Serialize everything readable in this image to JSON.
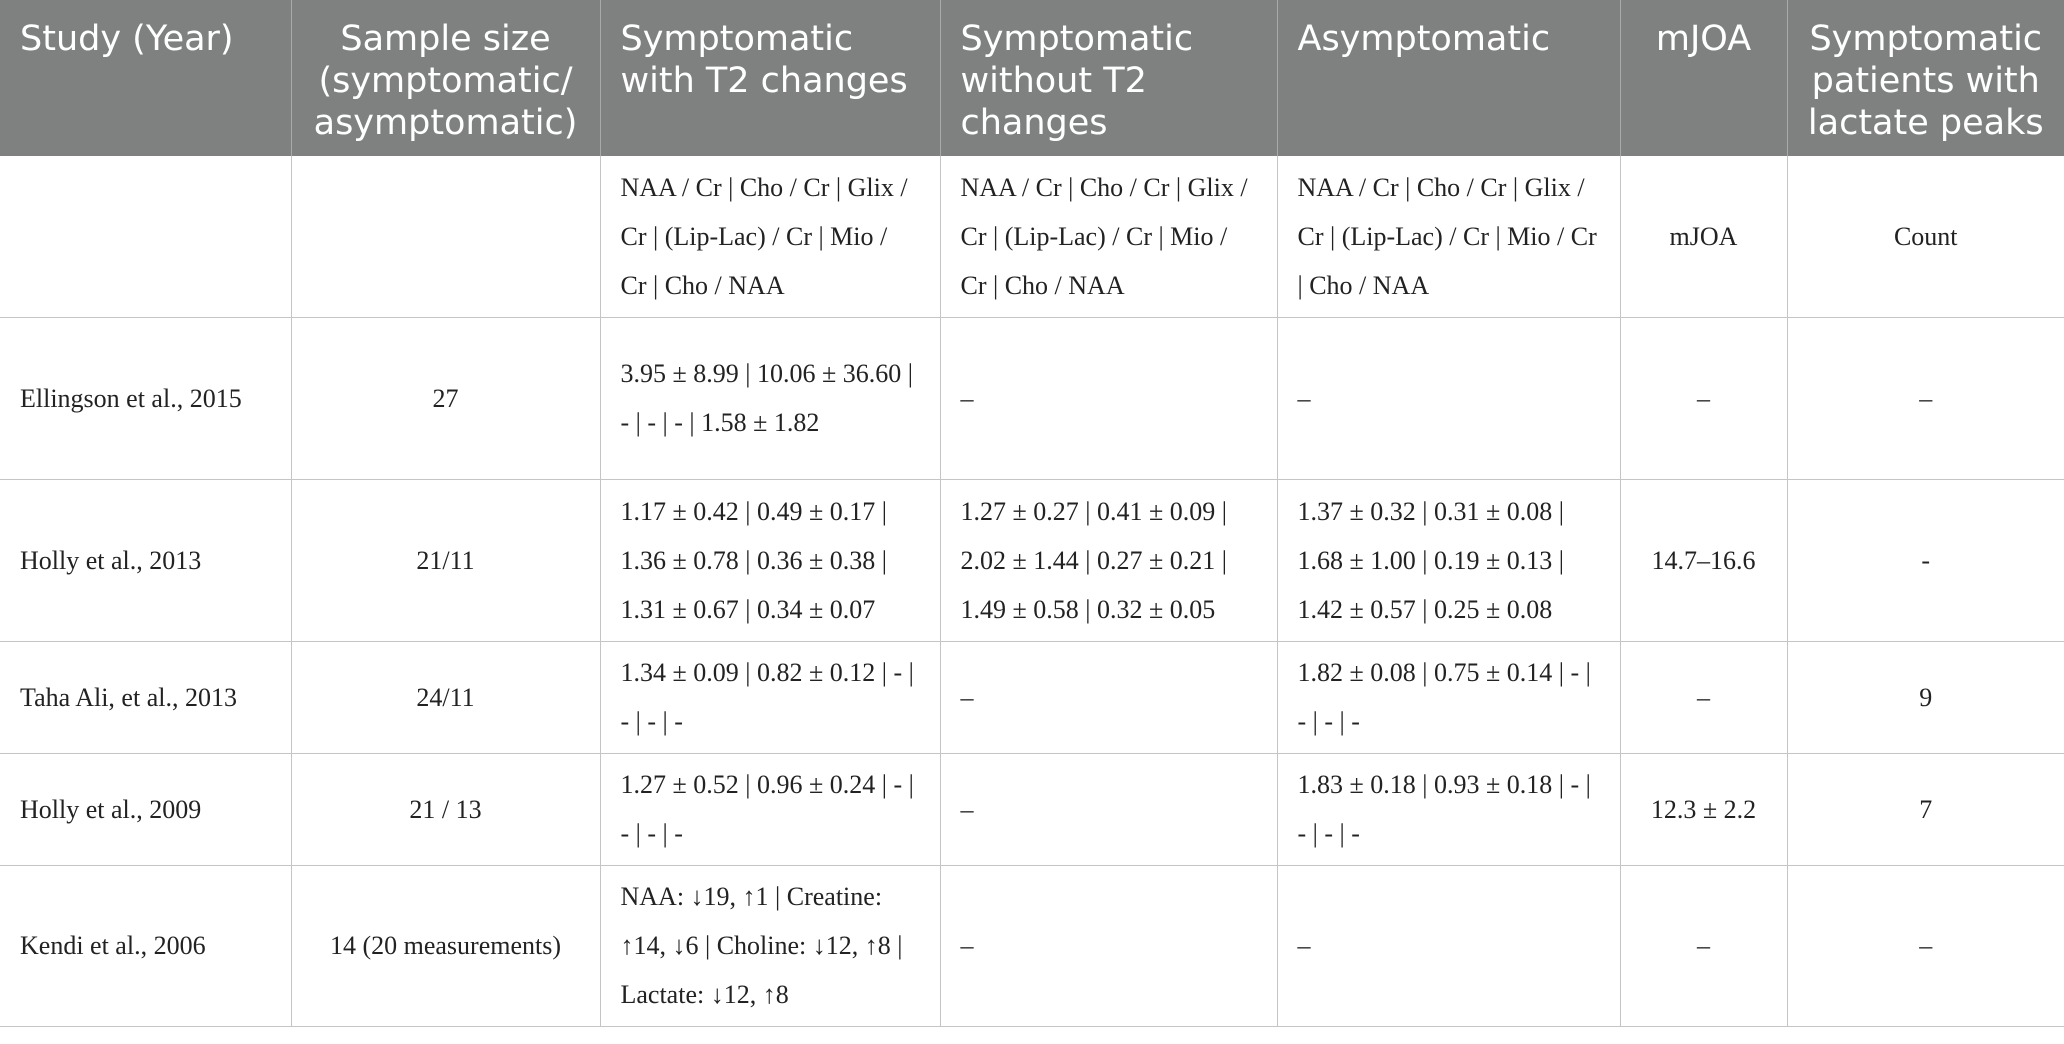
{
  "headers": [
    "Study (Year)",
    "Sample size (symptomatic/ asymptomatic)",
    "Symptomatic with T2 changes",
    "Symptomatic without T2 changes",
    "Asymptomatic",
    "mJOA",
    "Symptomatic patients with lactate peaks"
  ],
  "rows": [
    [
      "",
      "",
      "NAA / Cr | Cho / Cr | Glix / Cr | (Lip-Lac) / Cr | Mio / Cr | Cho / NAA",
      "NAA / Cr | Cho / Cr | Glix / Cr | (Lip-Lac) / Cr | Mio / Cr | Cho / NAA",
      "NAA / Cr | Cho / Cr | Glix / Cr | (Lip-Lac) / Cr | Mio / Cr | Cho / NAA",
      "mJOA",
      "Count"
    ],
    [
      "Ellingson et al., 2015",
      "27",
      "3.95 ± 8.99 | 10.06 ± 36.60 | - | - | - | 1.58 ± 1.82",
      "–",
      "–",
      "–",
      "–"
    ],
    [
      "Holly et al., 2013",
      "21/11",
      "1.17 ± 0.42 | 0.49 ± 0.17 | 1.36 ± 0.78 | 0.36 ± 0.38 | 1.31 ± 0.67 | 0.34 ± 0.07",
      "1.27 ± 0.27 | 0.41 ± 0.09 | 2.02 ± 1.44 | 0.27 ± 0.21 | 1.49 ± 0.58 | 0.32 ± 0.05",
      "1.37 ± 0.32 | 0.31 ± 0.08 | 1.68 ± 1.00 | 0.19 ± 0.13 | 1.42 ± 0.57 | 0.25 ± 0.08",
      "14.7–16.6",
      "-"
    ],
    [
      "Taha Ali, et al., 2013",
      "24/11",
      "1.34 ± 0.09 | 0.82 ± 0.12 | - | - | - | -",
      "–",
      "1.82 ± 0.08 | 0.75 ± 0.14 | - | - | - | -",
      "–",
      "9"
    ],
    [
      "Holly et al., 2009",
      "21 / 13",
      "1.27 ± 0.52 | 0.96 ± 0.24 | - | - | - | -",
      "–",
      "1.83 ± 0.18 | 0.93 ± 0.18 | - | - | - | -",
      "12.3 ± 2.2",
      "7"
    ],
    [
      "Kendi et al., 2006",
      "14 (20 measurements)",
      "NAA: ↓19, ↑1 | Creatine: ↑14, ↓6 | Choline: ↓12, ↑8 | Lactate: ↓12, ↑8",
      "–",
      "–",
      "–",
      "–"
    ]
  ]
}
